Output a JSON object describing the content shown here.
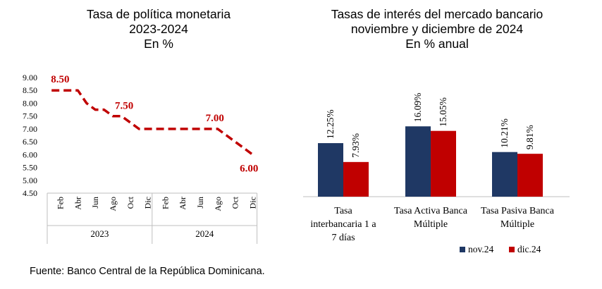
{
  "colors": {
    "policy_line": "#c00000",
    "series_nov": "#1f3864",
    "series_dec": "#c00000",
    "axis": "#bfbfbf"
  },
  "chart_data": [
    {
      "type": "line",
      "title": [
        "Tasa de política monetaria",
        "2023-2024",
        "En %"
      ],
      "x": [
        "2023-01",
        "2023-02",
        "2023-03",
        "2023-04",
        "2023-05",
        "2023-06",
        "2023-07",
        "2023-08",
        "2023-09",
        "2023-10",
        "2023-11",
        "2023-12",
        "2024-01",
        "2024-02",
        "2024-03",
        "2024-04",
        "2024-05",
        "2024-06",
        "2024-07",
        "2024-08",
        "2024-09",
        "2024-10",
        "2024-11",
        "2024-12"
      ],
      "values": [
        8.5,
        8.5,
        8.5,
        8.5,
        8.0,
        7.75,
        7.75,
        7.5,
        7.5,
        7.25,
        7.0,
        7.0,
        7.0,
        7.0,
        7.0,
        7.0,
        7.0,
        7.0,
        7.0,
        7.0,
        6.75,
        6.5,
        6.25,
        6.0
      ],
      "yticks": [
        "4.50",
        "5.00",
        "5.50",
        "6.00",
        "6.50",
        "7.00",
        "7.50",
        "8.00",
        "8.50",
        "9.00"
      ],
      "ylim": [
        4.5,
        9.0
      ],
      "month_labels": [
        "Feb",
        "Abr",
        "Jun",
        "Ago",
        "Oct",
        "Dic",
        "Feb",
        "Abr",
        "Jun",
        "Ago",
        "Oct",
        "Dic"
      ],
      "year_labels": [
        "2023",
        "2024"
      ],
      "data_labels": [
        {
          "x": "2023-01",
          "text": "8.50"
        },
        {
          "x": "2023-08",
          "text": "7.50"
        },
        {
          "x": "2024-08",
          "text": "7.00"
        },
        {
          "x": "2024-12",
          "text": "6.00"
        }
      ]
    },
    {
      "type": "bar",
      "title": [
        "Tasas de interés del mercado bancario",
        "noviembre y diciembre de 2024",
        "En % anual"
      ],
      "categories": [
        [
          "Tasa",
          "interbancaria 1 a",
          "7 días"
        ],
        [
          "Tasa Activa Banca",
          "Múltiple"
        ],
        [
          "Tasa Pasiva Banca",
          "Múltiple"
        ]
      ],
      "series": [
        {
          "name": "nov.24",
          "values": [
            12.25,
            16.09,
            10.21
          ],
          "labels": [
            "12.25%",
            "16.09%",
            "10.21%"
          ]
        },
        {
          "name": "dic.24",
          "values": [
            7.93,
            15.05,
            9.81
          ],
          "labels": [
            "7.93%",
            "15.05%",
            "9.81%"
          ]
        }
      ],
      "legend": "bottom-right"
    }
  ],
  "source": "Fuente: Banco Central de la República Dominicana."
}
